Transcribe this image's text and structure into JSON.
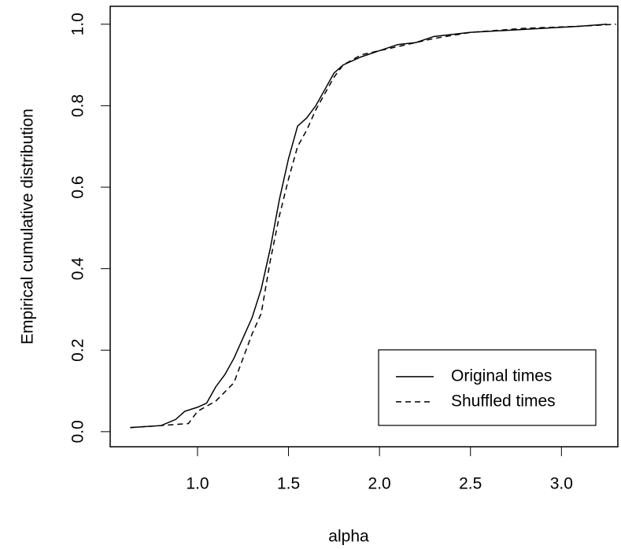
{
  "chart_data": {
    "type": "line",
    "x_label": "alpha",
    "y_label": "Empirical cumulative distribution",
    "xlim": [
      0.52,
      3.31
    ],
    "ylim": [
      -0.037,
      1.044
    ],
    "xticks": [
      {
        "value": 1,
        "label": "1.0"
      },
      {
        "value": 1.5,
        "label": "1.5"
      },
      {
        "value": 2,
        "label": "2.0"
      },
      {
        "value": 2.5,
        "label": "2.5"
      },
      {
        "value": 3,
        "label": "3.0"
      }
    ],
    "yticks": [
      {
        "value": 0,
        "label": "0.0"
      },
      {
        "value": 0.2,
        "label": "0.2"
      },
      {
        "value": 0.4,
        "label": "0.4"
      },
      {
        "value": 0.6,
        "label": "0.6"
      },
      {
        "value": 0.8,
        "label": "0.8"
      },
      {
        "value": 1,
        "label": "1.0"
      }
    ],
    "legend": "bottom-right",
    "series": [
      {
        "name": "Original times",
        "color": "#000000",
        "linestyle": "solid",
        "x": [
          0.63,
          0.8,
          0.88,
          0.93,
          1.0,
          1.05,
          1.1,
          1.15,
          1.2,
          1.25,
          1.3,
          1.35,
          1.4,
          1.45,
          1.5,
          1.55,
          1.6,
          1.65,
          1.7,
          1.75,
          1.8,
          1.9,
          2.0,
          2.1,
          2.2,
          2.3,
          2.5,
          2.7,
          2.9,
          3.1,
          3.25
        ],
        "values": [
          0.01,
          0.015,
          0.03,
          0.05,
          0.06,
          0.07,
          0.11,
          0.14,
          0.18,
          0.23,
          0.28,
          0.35,
          0.45,
          0.57,
          0.67,
          0.75,
          0.77,
          0.8,
          0.84,
          0.88,
          0.9,
          0.92,
          0.935,
          0.95,
          0.955,
          0.97,
          0.98,
          0.985,
          0.99,
          0.995,
          1.0
        ]
      },
      {
        "name": "Shuffled times",
        "color": "#000000",
        "linestyle": "dashed",
        "x": [
          0.63,
          0.8,
          0.95,
          1.0,
          1.1,
          1.2,
          1.25,
          1.3,
          1.35,
          1.4,
          1.45,
          1.5,
          1.55,
          1.6,
          1.65,
          1.7,
          1.75,
          1.8,
          1.9,
          2.0,
          2.1,
          2.3,
          2.5,
          2.8,
          3.1,
          3.3
        ],
        "values": [
          0.01,
          0.015,
          0.02,
          0.05,
          0.075,
          0.12,
          0.18,
          0.24,
          0.29,
          0.42,
          0.53,
          0.62,
          0.7,
          0.74,
          0.79,
          0.83,
          0.87,
          0.9,
          0.925,
          0.935,
          0.945,
          0.965,
          0.98,
          0.99,
          0.995,
          1.0
        ]
      }
    ]
  }
}
